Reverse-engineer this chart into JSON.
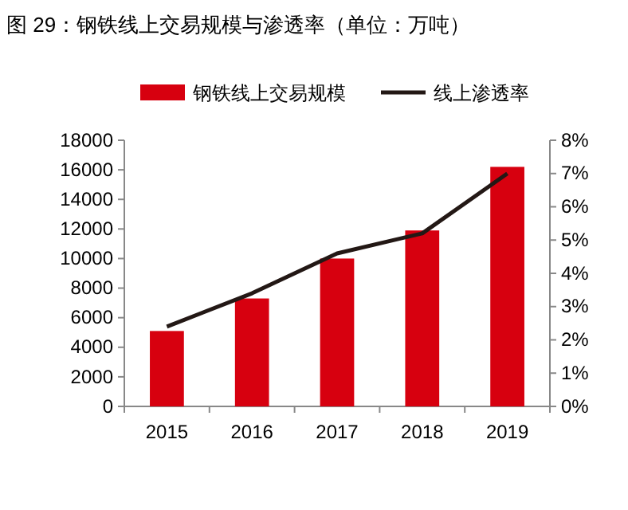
{
  "chart_data": {
    "type": "bar",
    "title": "图 29：钢铁线上交易规模与渗透率（单位：万吨）",
    "categories": [
      "2015",
      "2016",
      "2017",
      "2018",
      "2019"
    ],
    "series": [
      {
        "name": "钢铁线上交易规模",
        "color": "#d7000f",
        "values": [
          5100,
          7300,
          10000,
          11900,
          16200
        ]
      },
      {
        "name": "线上渗透率",
        "type": "line",
        "axis": "y2",
        "color": "#231815",
        "values": [
          2.4,
          3.4,
          4.6,
          5.2,
          7.0
        ]
      }
    ],
    "ylim": [
      0,
      18000
    ],
    "yticks": [
      0,
      2000,
      4000,
      6000,
      8000,
      10000,
      12000,
      14000,
      16000,
      18000
    ],
    "y2lim": [
      0,
      8
    ],
    "y2ticks": [
      {
        "value": 0,
        "label": "0%"
      },
      {
        "value": 1,
        "label": "1%"
      },
      {
        "value": 2,
        "label": "2%"
      },
      {
        "value": 3,
        "label": "3%"
      },
      {
        "value": 4,
        "label": "4%"
      },
      {
        "value": 5,
        "label": "5%"
      },
      {
        "value": 6,
        "label": "6%"
      },
      {
        "value": 7,
        "label": "7%"
      },
      {
        "value": 8,
        "label": "8%"
      }
    ],
    "legend": "top",
    "grid": false
  }
}
